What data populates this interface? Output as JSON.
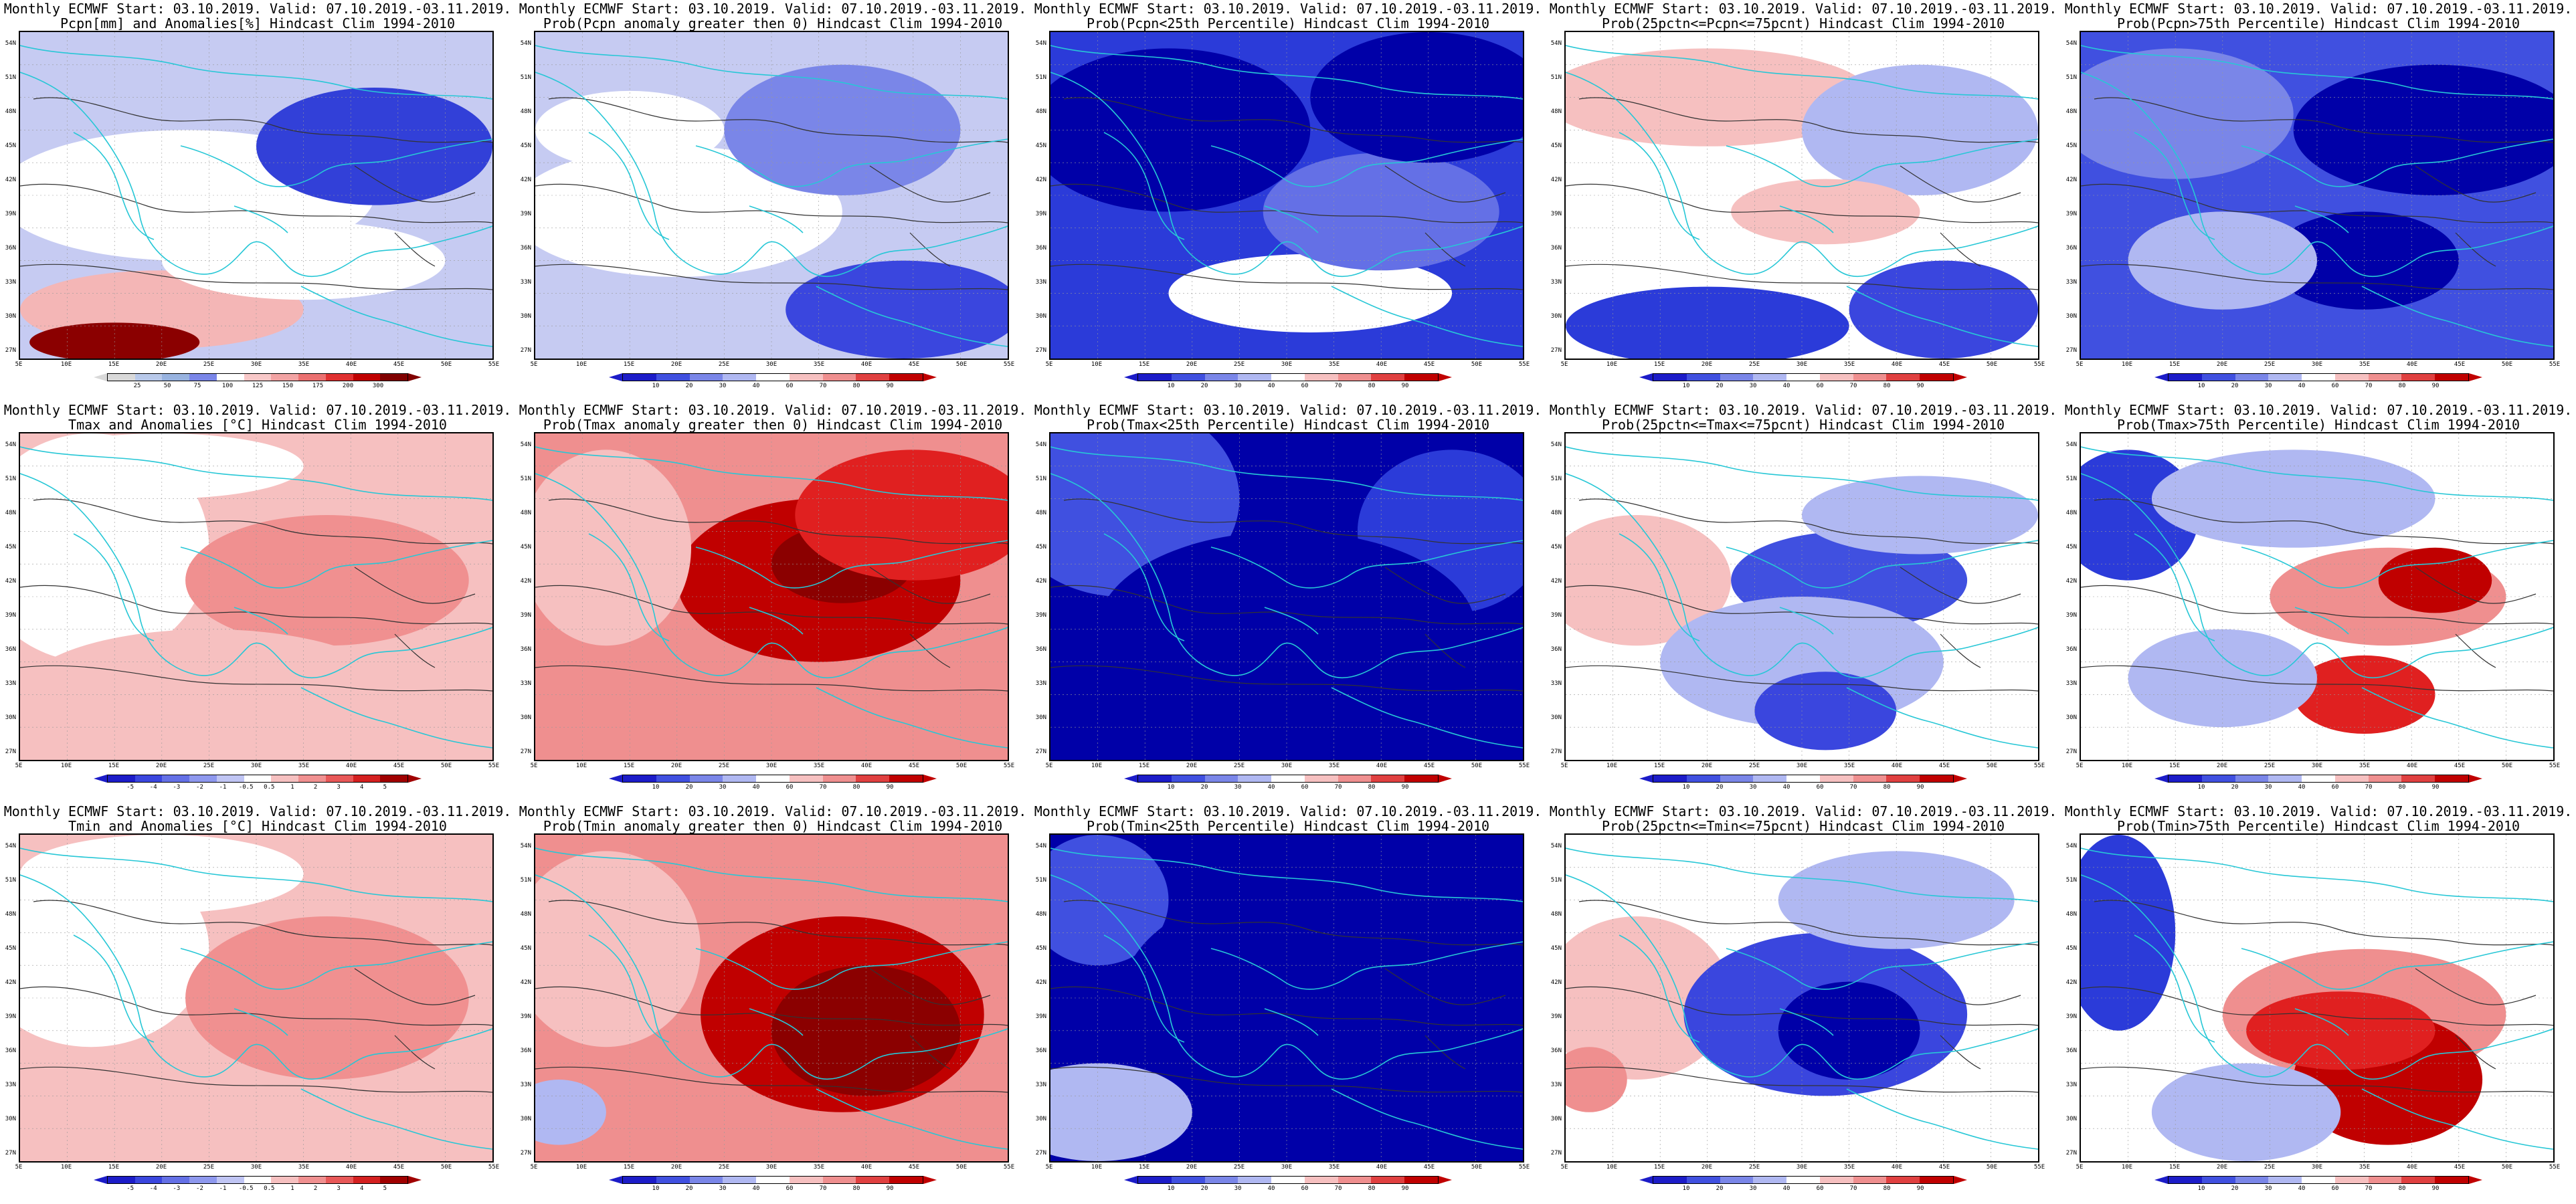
{
  "title_line1": "Monthly ECMWF Start: 03.10.2019. Valid: 07.10.2019.-03.11.2019.",
  "lat_ticks": [
    "54N",
    "51N",
    "48N",
    "45N",
    "42N",
    "39N",
    "36N",
    "33N",
    "30N",
    "27N"
  ],
  "lon_ticks": [
    "5E",
    "10E",
    "15E",
    "20E",
    "25E",
    "30E",
    "35E",
    "40E",
    "45E",
    "50E",
    "55E"
  ],
  "colors": {
    "coast": "#27c7d6",
    "contour": "#333333",
    "blue_dark": "#0000a8",
    "blue": "#2b3bd9",
    "blue_mid": "#7a86e8",
    "blue_light": "#bcc1f2",
    "red_light": "#f5b8b8",
    "red_mid": "#f27878",
    "red": "#e02020",
    "red_dark": "#8b0000"
  },
  "palettes": {
    "precip": [
      "#d9d9d9",
      "#b8c9ea",
      "#98b3e0",
      "#7a86e8",
      "#ffffff",
      "#f8c8c8",
      "#f2a3a3",
      "#eb7070",
      "#e03030",
      "#c00000",
      "#800000"
    ],
    "temp": [
      "#1c1cc8",
      "#3a46de",
      "#6470e6",
      "#8e98ee",
      "#c0c5f4",
      "#ffffff",
      "#f6c0c0",
      "#f09090",
      "#e85858",
      "#d42020",
      "#a00000"
    ],
    "prob": [
      "#1c1cc8",
      "#4050e0",
      "#7a86e8",
      "#b0b8f2",
      "#ffffff",
      "#f6c0c0",
      "#ef8f8f",
      "#e04040",
      "#c00000"
    ]
  },
  "panels": [
    {
      "line2": "Pcpn[mm] and Anomalies[%] Hindcast Clim 1994-2010",
      "colorbar": "precip",
      "ticks": [
        "25",
        "50",
        "75",
        "100",
        "125",
        "150",
        "175",
        "200",
        "300"
      ],
      "base": "#c6cbf2",
      "blobs": [
        [
          "#ffffff",
          0.35,
          0.5,
          0.4,
          0.2
        ],
        [
          "#f4b6b6",
          0.3,
          0.85,
          0.3,
          0.12
        ],
        [
          "#8b0000",
          0.2,
          0.95,
          0.18,
          0.06
        ],
        [
          "#3240d8",
          0.75,
          0.35,
          0.25,
          0.18
        ],
        [
          "#ffffff",
          0.6,
          0.7,
          0.3,
          0.12
        ]
      ]
    },
    {
      "line2": "Prob(Pcpn anomaly greater then 0) Hindcast Clim 1994-2010",
      "colorbar": "prob",
      "ticks": [
        "10",
        "20",
        "30",
        "40",
        "60",
        "70",
        "80",
        "90"
      ],
      "base": "#c6cbf2",
      "blobs": [
        [
          "#ffffff",
          0.3,
          0.55,
          0.35,
          0.2
        ],
        [
          "#3a46de",
          0.78,
          0.85,
          0.25,
          0.15
        ],
        [
          "#7a86e8",
          0.65,
          0.3,
          0.25,
          0.2
        ],
        [
          "#ffffff",
          0.2,
          0.3,
          0.2,
          0.12
        ]
      ]
    },
    {
      "line2": "Prob(Pcpn<25th Percentile) Hindcast Clim 1994-2010",
      "colorbar": "prob",
      "ticks": [
        "10",
        "20",
        "30",
        "40",
        "60",
        "70",
        "80",
        "90"
      ],
      "base": "#2b3bd9",
      "blobs": [
        [
          "#0000a8",
          0.25,
          0.3,
          0.3,
          0.25
        ],
        [
          "#ffffff",
          0.55,
          0.8,
          0.3,
          0.12
        ],
        [
          "#6470e6",
          0.7,
          0.55,
          0.25,
          0.18
        ],
        [
          "#0000a8",
          0.8,
          0.2,
          0.25,
          0.2
        ]
      ]
    },
    {
      "line2": "Prob(25pctn<=Pcpn<=75pcnt) Hindcast Clim 1994-2010",
      "colorbar": "prob",
      "ticks": [
        "10",
        "20",
        "30",
        "40",
        "60",
        "70",
        "80",
        "90"
      ],
      "base": "#ffffff",
      "blobs": [
        [
          "#f6c0c0",
          0.3,
          0.2,
          0.35,
          0.15
        ],
        [
          "#2b3bd9",
          0.3,
          0.9,
          0.3,
          0.12
        ],
        [
          "#3a46de",
          0.8,
          0.85,
          0.2,
          0.15
        ],
        [
          "#b0b8f2",
          0.75,
          0.3,
          0.25,
          0.2
        ],
        [
          "#f6c0c0",
          0.55,
          0.55,
          0.2,
          0.1
        ]
      ]
    },
    {
      "line2": "Prob(Pcpn>75th Percentile) Hindcast Clim 1994-2010",
      "colorbar": "prob",
      "ticks": [
        "10",
        "20",
        "30",
        "40",
        "60",
        "70",
        "80",
        "90"
      ],
      "base": "#4050e0",
      "blobs": [
        [
          "#0000a8",
          0.75,
          0.3,
          0.3,
          0.2
        ],
        [
          "#7a86e8",
          0.2,
          0.25,
          0.25,
          0.2
        ],
        [
          "#0000a8",
          0.6,
          0.7,
          0.2,
          0.15
        ],
        [
          "#b0b8f2",
          0.3,
          0.7,
          0.2,
          0.15
        ]
      ]
    },
    {
      "line2": "Tmax and Anomalies [°C] Hindcast Clim 1994-2010",
      "colorbar": "temp",
      "ticks": [
        "-5",
        "-4",
        "-3",
        "-2",
        "-1",
        "-0.5",
        "0.5",
        "1",
        "2",
        "3",
        "4",
        "5"
      ],
      "base": "#f6c0c0",
      "blobs": [
        [
          "#ffffff",
          0.15,
          0.35,
          0.25,
          0.35
        ],
        [
          "#f09090",
          0.65,
          0.45,
          0.3,
          0.2
        ],
        [
          "#f6c0c0",
          0.4,
          0.8,
          0.4,
          0.2
        ],
        [
          "#ffffff",
          0.3,
          0.1,
          0.3,
          0.1
        ]
      ]
    },
    {
      "line2": "Prob(Tmax anomaly greater then 0) Hindcast Clim 1994-2010",
      "colorbar": "prob",
      "ticks": [
        "10",
        "20",
        "30",
        "40",
        "60",
        "70",
        "80",
        "90"
      ],
      "base": "#ef8f8f",
      "blobs": [
        [
          "#c00000",
          0.6,
          0.45,
          0.3,
          0.25
        ],
        [
          "#8b0000",
          0.65,
          0.4,
          0.15,
          0.12
        ],
        [
          "#f6c0c0",
          0.15,
          0.35,
          0.18,
          0.3
        ],
        [
          "#e02020",
          0.8,
          0.25,
          0.25,
          0.2
        ]
      ]
    },
    {
      "line2": "Prob(Tmax<25th Percentile) Hindcast Clim 1994-2010",
      "colorbar": "prob",
      "ticks": [
        "10",
        "20",
        "30",
        "40",
        "60",
        "70",
        "80",
        "90"
      ],
      "base": "#0000a8",
      "blobs": [
        [
          "#4050e0",
          0.15,
          0.2,
          0.25,
          0.3
        ],
        [
          "#2b3bd9",
          0.85,
          0.3,
          0.2,
          0.25
        ],
        [
          "#0000a8",
          0.5,
          0.6,
          0.4,
          0.3
        ]
      ]
    },
    {
      "line2": "Prob(25pctn<=Tmax<=75pcnt) Hindcast Clim 1994-2010",
      "colorbar": "prob",
      "ticks": [
        "10",
        "20",
        "30",
        "40",
        "60",
        "70",
        "80",
        "90"
      ],
      "base": "#ffffff",
      "blobs": [
        [
          "#f6c0c0",
          0.15,
          0.45,
          0.2,
          0.2
        ],
        [
          "#4050e0",
          0.6,
          0.45,
          0.25,
          0.15
        ],
        [
          "#b0b8f2",
          0.5,
          0.7,
          0.3,
          0.2
        ],
        [
          "#3a46de",
          0.55,
          0.85,
          0.15,
          0.12
        ],
        [
          "#b0b8f2",
          0.75,
          0.25,
          0.25,
          0.12
        ]
      ]
    },
    {
      "line2": "Prob(Tmax>75th Percentile) Hindcast Clim 1994-2010",
      "colorbar": "prob",
      "ticks": [
        "10",
        "20",
        "30",
        "40",
        "60",
        "70",
        "80",
        "90"
      ],
      "base": "#ffffff",
      "blobs": [
        [
          "#2b3bd9",
          0.1,
          0.25,
          0.15,
          0.2
        ],
        [
          "#b0b8f2",
          0.45,
          0.2,
          0.3,
          0.15
        ],
        [
          "#ef8f8f",
          0.65,
          0.5,
          0.25,
          0.15
        ],
        [
          "#c00000",
          0.75,
          0.45,
          0.12,
          0.1
        ],
        [
          "#e02020",
          0.6,
          0.8,
          0.15,
          0.12
        ],
        [
          "#b0b8f2",
          0.3,
          0.75,
          0.2,
          0.15
        ]
      ]
    },
    {
      "line2": "Tmin and Anomalies [°C] Hindcast Clim 1994-2010",
      "colorbar": "temp",
      "ticks": [
        "-5",
        "-4",
        "-3",
        "-2",
        "-1",
        "-0.5",
        "0.5",
        "1",
        "2",
        "3",
        "4",
        "5"
      ],
      "base": "#f6c0c0",
      "blobs": [
        [
          "#ffffff",
          0.15,
          0.35,
          0.25,
          0.3
        ],
        [
          "#f09090",
          0.65,
          0.5,
          0.3,
          0.25
        ],
        [
          "#ffffff",
          0.3,
          0.12,
          0.3,
          0.12
        ]
      ]
    },
    {
      "line2": "Prob(Tmin anomaly greater then 0) Hindcast Clim 1994-2010",
      "colorbar": "prob",
      "ticks": [
        "10",
        "20",
        "30",
        "40",
        "60",
        "70",
        "80",
        "90"
      ],
      "base": "#ef8f8f",
      "blobs": [
        [
          "#c00000",
          0.65,
          0.55,
          0.3,
          0.3
        ],
        [
          "#8b0000",
          0.7,
          0.6,
          0.2,
          0.2
        ],
        [
          "#f6c0c0",
          0.15,
          0.35,
          0.2,
          0.3
        ],
        [
          "#b0b8f2",
          0.05,
          0.85,
          0.1,
          0.1
        ]
      ]
    },
    {
      "line2": "Prob(Tmin<25th Percentile) Hindcast Clim 1994-2010",
      "colorbar": "prob",
      "ticks": [
        "10",
        "20",
        "30",
        "40",
        "60",
        "70",
        "80",
        "90"
      ],
      "base": "#0000a8",
      "blobs": [
        [
          "#b0b8f2",
          0.1,
          0.85,
          0.2,
          0.15
        ],
        [
          "#4050e0",
          0.1,
          0.2,
          0.15,
          0.2
        ],
        [
          "#0000a8",
          0.55,
          0.5,
          0.4,
          0.35
        ]
      ]
    },
    {
      "line2": "Prob(25pctn<=Tmin<=75pcnt) Hindcast Clim 1994-2010",
      "colorbar": "prob",
      "ticks": [
        "10",
        "20",
        "30",
        "40",
        "60",
        "70",
        "80",
        "90"
      ],
      "base": "#ffffff",
      "blobs": [
        [
          "#f6c0c0",
          0.15,
          0.5,
          0.2,
          0.25
        ],
        [
          "#3a46de",
          0.55,
          0.55,
          0.3,
          0.25
        ],
        [
          "#0000a8",
          0.6,
          0.6,
          0.15,
          0.15
        ],
        [
          "#b0b8f2",
          0.7,
          0.2,
          0.25,
          0.15
        ],
        [
          "#ef8f8f",
          0.05,
          0.75,
          0.08,
          0.1
        ]
      ]
    },
    {
      "line2": "Prob(Tmin>75th Percentile) Hindcast Clim 1994-2010",
      "colorbar": "prob",
      "ticks": [
        "10",
        "20",
        "30",
        "40",
        "60",
        "70",
        "80",
        "90"
      ],
      "base": "#ffffff",
      "blobs": [
        [
          "#2b3bd9",
          0.08,
          0.3,
          0.12,
          0.3
        ],
        [
          "#ef8f8f",
          0.6,
          0.55,
          0.3,
          0.2
        ],
        [
          "#c00000",
          0.65,
          0.75,
          0.2,
          0.2
        ],
        [
          "#e02020",
          0.55,
          0.6,
          0.2,
          0.12
        ],
        [
          "#b0b8f2",
          0.35,
          0.85,
          0.2,
          0.15
        ]
      ]
    }
  ]
}
